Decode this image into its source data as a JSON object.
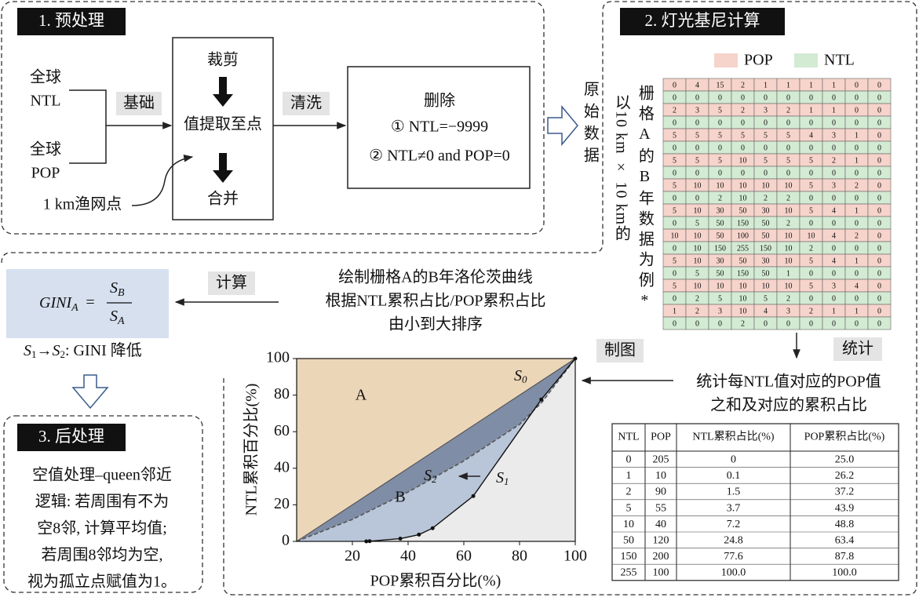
{
  "section1": {
    "title": "1. 预处理",
    "input_ntl": [
      "全球",
      "NTL"
    ],
    "input_pop": [
      "全球",
      "POP"
    ],
    "fishnet": "1 km渔网点",
    "edge_base": "基础",
    "edge_clean": "清洗",
    "process": [
      "裁剪",
      "值提取至点",
      "合并"
    ],
    "delete": [
      "删除",
      "① NTL=−9999",
      "② NTL≠0 and POP=0"
    ]
  },
  "raw_data": "原始数据",
  "section2": {
    "title": "2. 灯光基尼计算",
    "legend": [
      "POP",
      "NTL"
    ],
    "grid_caption_1": "栅格A的B年数据为例*",
    "grid_caption_2": "以10 km × 10 km的",
    "grid": [
      [
        0,
        4,
        15,
        2,
        1,
        1,
        1,
        1,
        0,
        0
      ],
      [
        0,
        0,
        0,
        0,
        0,
        0,
        0,
        0,
        0,
        0
      ],
      [
        2,
        3,
        5,
        2,
        3,
        2,
        1,
        1,
        0,
        0
      ],
      [
        0,
        0,
        0,
        0,
        0,
        0,
        0,
        0,
        0,
        0
      ],
      [
        5,
        5,
        5,
        5,
        5,
        5,
        4,
        3,
        1,
        0
      ],
      [
        0,
        0,
        0,
        0,
        0,
        0,
        0,
        0,
        0,
        0
      ],
      [
        5,
        5,
        5,
        10,
        5,
        5,
        5,
        2,
        1,
        0
      ],
      [
        0,
        0,
        0,
        0,
        0,
        0,
        0,
        0,
        0,
        0
      ],
      [
        5,
        10,
        10,
        10,
        10,
        10,
        5,
        3,
        2,
        0
      ],
      [
        0,
        0,
        2,
        10,
        2,
        2,
        0,
        0,
        0,
        0
      ],
      [
        5,
        10,
        30,
        50,
        30,
        10,
        5,
        4,
        1,
        0
      ],
      [
        0,
        5,
        50,
        150,
        50,
        2,
        0,
        0,
        0,
        0
      ],
      [
        10,
        10,
        50,
        100,
        50,
        10,
        10,
        4,
        2,
        0
      ],
      [
        0,
        10,
        150,
        255,
        150,
        10,
        2,
        0,
        0,
        0
      ],
      [
        5,
        10,
        30,
        50,
        30,
        10,
        5,
        4,
        1,
        0
      ],
      [
        0,
        5,
        50,
        150,
        50,
        1,
        0,
        0,
        0,
        0
      ],
      [
        5,
        10,
        10,
        10,
        10,
        10,
        5,
        3,
        4,
        0
      ],
      [
        0,
        2,
        5,
        10,
        5,
        2,
        0,
        0,
        0,
        0
      ],
      [
        1,
        2,
        3,
        10,
        4,
        3,
        2,
        1,
        1,
        0
      ],
      [
        0,
        0,
        0,
        2,
        0,
        0,
        0,
        0,
        0,
        0
      ]
    ],
    "stat_edge": "统计",
    "stat_text": [
      "统计每NTL值对应的POP值",
      "之和及对应的累积占比"
    ],
    "map_edge": "制图",
    "table": {
      "header": [
        "NTL",
        "POP",
        "NTL累积占比(%)",
        "POP累积占比(%)"
      ],
      "rows": [
        [
          "0",
          "205",
          "0",
          "25.0"
        ],
        [
          "1",
          "10",
          "0.1",
          "26.2"
        ],
        [
          "2",
          "90",
          "1.5",
          "37.2"
        ],
        [
          "5",
          "55",
          "3.7",
          "43.9"
        ],
        [
          "10",
          "40",
          "7.2",
          "48.8"
        ],
        [
          "50",
          "120",
          "24.8",
          "63.4"
        ],
        [
          "150",
          "200",
          "77.6",
          "87.8"
        ],
        [
          "255",
          "100",
          "100.0",
          "100.0"
        ]
      ]
    }
  },
  "lorenz_text": [
    "绘制栅格A的B年洛伦茨曲线",
    "根据NTL累积占比/POP累积占比",
    "由小到大排序"
  ],
  "calc_edge": "计算",
  "formula": {
    "lhs": "GINI",
    "lhs_sub": "A",
    "eq": "=",
    "num": "S",
    "num_sub": "B",
    "den": "S",
    "den_sub": "A"
  },
  "gini_note": [
    "S",
    "1",
    "→",
    "S",
    "2",
    ": GINI 降低"
  ],
  "chart": {
    "type": "line",
    "xlabel": "POP累积百分比(%)",
    "ylabel": "NTL累积百分比(%)",
    "xlim": [
      0,
      100
    ],
    "ylim": [
      0,
      100
    ],
    "xticks": [
      20,
      40,
      60,
      80,
      100
    ],
    "yticks": [
      0,
      20,
      40,
      60,
      80,
      100
    ],
    "region_a": "A",
    "region_b": "B",
    "s0": [
      "S",
      "0"
    ],
    "s1": [
      "S",
      "1"
    ],
    "s2": [
      "S",
      "2"
    ],
    "x": [
      25.0,
      26.2,
      37.2,
      43.9,
      48.8,
      63.4,
      87.8,
      100.0
    ],
    "values": [
      0,
      0.1,
      1.5,
      3.7,
      7.2,
      24.8,
      77.6,
      100.0
    ]
  },
  "section3": {
    "title": "3. 后处理",
    "subtitle": "空值处理–queen邻近",
    "logic": [
      "逻辑: 若周围有不为",
      "空8邻, 计算平均值;",
      "若周围8邻均为空,",
      "视为孤立点赋值为1。"
    ]
  }
}
